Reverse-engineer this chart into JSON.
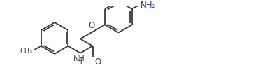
{
  "bg_color": "#ffffff",
  "line_color": "#3a3a3a",
  "text_color": "#3a3a3a",
  "nh2_color": "#1a3a8a",
  "line_width": 1.3,
  "font_size": 8.5,
  "figsize": [
    3.72,
    1.07
  ],
  "dpi": 100,
  "xlim": [
    -0.5,
    11.5
  ],
  "ylim": [
    -0.3,
    3.2
  ]
}
